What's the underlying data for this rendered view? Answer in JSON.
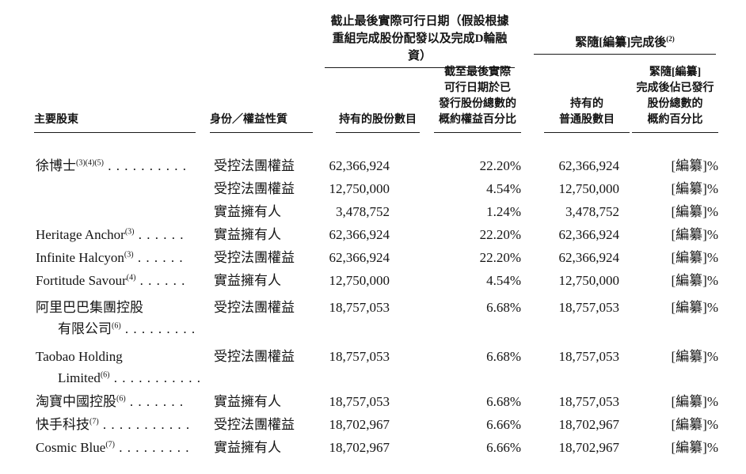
{
  "table": {
    "group_headers": {
      "current": {
        "lines": [
          "截止最後實際可行日期（假設根據",
          "重組完成股份配發以及完成D輪融資）"
        ]
      },
      "post_completion": {
        "text": "緊隨[編纂]完成後",
        "sup": "(2)"
      }
    },
    "columns": {
      "shareholder": "主要股東",
      "capacity": "身份／權益性質",
      "shares_held": "持有的股份數目",
      "pct_issued": {
        "lines": [
          "截至最後實際",
          "可行日期於已",
          "發行股份總數的",
          "概約權益百分比"
        ]
      },
      "ordinary_shares": {
        "lines": [
          "持有的",
          "普通股數目"
        ]
      },
      "post_pct": {
        "lines": [
          "緊隨[編纂]",
          "完成後佔已發行",
          "股份總數的",
          "概約百分比"
        ]
      }
    },
    "rows": [
      {
        "name": "徐博士",
        "sup": "(3)(4)(5)",
        "leader": " . . . . . . . . . .",
        "capacity": "受控法團權益",
        "shares": "62,366,924",
        "pct": "22.20%",
        "ordinary": "62,366,924",
        "post": "[編纂]%"
      },
      {
        "name": "",
        "sup": "",
        "leader": "",
        "capacity": "受控法團權益",
        "shares": "12,750,000",
        "pct": "4.54%",
        "ordinary": "12,750,000",
        "post": "[編纂]%"
      },
      {
        "name": "",
        "sup": "",
        "leader": "",
        "capacity": "實益擁有人",
        "shares": "3,478,752",
        "pct": "1.24%",
        "ordinary": "3,478,752",
        "post": "[編纂]%"
      },
      {
        "name": "Heritage Anchor",
        "sup": "(3)",
        "leader": " . . . . . .",
        "capacity": "實益擁有人",
        "shares": "62,366,924",
        "pct": "22.20%",
        "ordinary": "62,366,924",
        "post": "[編纂]%"
      },
      {
        "name": "Infinite Halcyon",
        "sup": "(3)",
        "leader": " . . . . . .",
        "capacity": "受控法團權益",
        "shares": "62,366,924",
        "pct": "22.20%",
        "ordinary": "62,366,924",
        "post": "[編纂]%"
      },
      {
        "name": "Fortitude Savour",
        "sup": "(4)",
        "leader": " . . . . . .",
        "capacity": "實益擁有人",
        "shares": "12,750,000",
        "pct": "4.54%",
        "ordinary": "12,750,000",
        "post": "[編纂]%"
      },
      {
        "name": "阿里巴巴集團控股",
        "sup": "",
        "leader": "",
        "name2": "有限公司",
        "sup2": "(6)",
        "leader2": " . . . . . . . . .",
        "capacity": "受控法團權益",
        "shares": "18,757,053",
        "pct": "6.68%",
        "ordinary": "18,757,053",
        "post": "[編纂]%"
      },
      {
        "name": "Taobao Holding",
        "sup": "",
        "leader": "",
        "name2": "Limited",
        "sup2": "(6)",
        "leader2": " . . . . . . . . . . .",
        "capacity": "受控法團權益",
        "shares": "18,757,053",
        "pct": "6.68%",
        "ordinary": "18,757,053",
        "post": "[編纂]%"
      },
      {
        "name": "淘寶中國控股",
        "sup": "(6)",
        "leader": " . . . . . . .",
        "capacity": "實益擁有人",
        "shares": "18,757,053",
        "pct": "6.68%",
        "ordinary": "18,757,053",
        "post": "[編纂]%"
      },
      {
        "name": "快手科技",
        "sup": "(7)",
        "leader": " . . . . . . . . . . .",
        "capacity": "受控法團權益",
        "shares": "18,702,967",
        "pct": "6.66%",
        "ordinary": "18,702,967",
        "post": "[編纂]%"
      },
      {
        "name": "Cosmic Blue",
        "sup": "(7)",
        "leader": " . . . . . . . . .",
        "capacity": "實益擁有人",
        "shares": "18,702,967",
        "pct": "6.66%",
        "ordinary": "18,702,967",
        "post": "[編纂]%"
      }
    ]
  }
}
